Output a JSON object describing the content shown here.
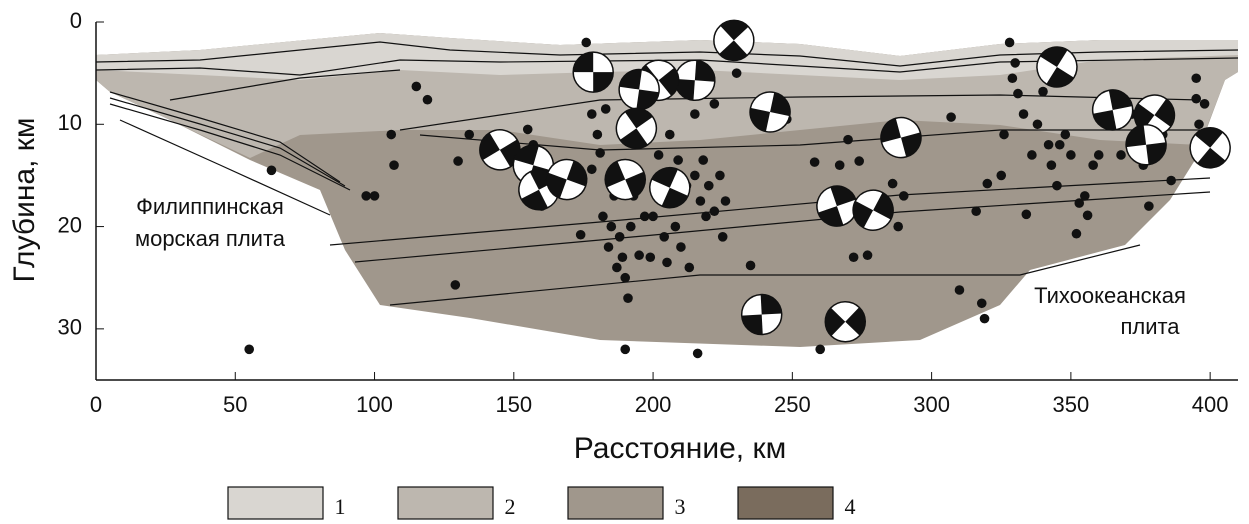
{
  "chart_data": {
    "type": "scatter",
    "xlabel": "Расстояние, км",
    "ylabel": "Глубина, км",
    "xlim": [
      0,
      410
    ],
    "xticks": [
      0,
      50,
      100,
      150,
      200,
      250,
      300,
      350,
      400
    ],
    "ylim": [
      0,
      35
    ],
    "yticks": [
      0,
      10,
      20,
      30
    ],
    "y_inverted": true,
    "annotations": [
      "Филиппинская",
      "морская плита",
      "Тихоокеанская",
      "плита"
    ],
    "legend": [
      {
        "name": "1",
        "color": "#d9d6d1"
      },
      {
        "name": "2",
        "color": "#bdb7af"
      },
      {
        "name": "3",
        "color": "#a0978c"
      },
      {
        "name": "4",
        "color": "#7a6c5d"
      }
    ],
    "earthquakes": {
      "color": "#111111",
      "x": [
        55,
        63,
        97,
        100,
        106,
        107,
        115,
        119,
        129,
        130,
        134,
        147,
        155,
        157,
        160,
        174,
        176,
        178,
        178,
        180,
        181,
        182,
        183,
        184,
        185,
        186,
        187,
        188,
        189,
        190,
        191,
        190,
        192,
        193,
        195,
        197,
        199,
        200,
        202,
        204,
        205,
        206,
        208,
        209,
        210,
        212,
        213,
        215,
        215,
        217,
        216,
        218,
        219,
        220,
        222,
        222,
        224,
        225,
        226,
        227,
        230,
        235,
        248,
        258,
        260,
        263,
        267,
        270,
        272,
        274,
        277,
        286,
        288,
        290,
        307,
        310,
        316,
        318,
        319,
        320,
        325,
        326,
        328,
        329,
        330,
        331,
        333,
        334,
        336,
        338,
        340,
        342,
        343,
        345,
        346,
        348,
        350,
        352,
        353,
        355,
        356,
        358,
        360,
        365,
        368,
        372,
        376,
        378,
        383,
        386,
        395,
        396,
        398,
        395
      ],
      "y": [
        32,
        14.5,
        17,
        17,
        11,
        14,
        6.3,
        7.6,
        25.7,
        13.6,
        11,
        13,
        10.5,
        12,
        18,
        20.8,
        2,
        14.4,
        9,
        11,
        12.8,
        19,
        8.5,
        22,
        20,
        17,
        24,
        21,
        23,
        25,
        27,
        32,
        20,
        17,
        22.8,
        19,
        23,
        19,
        13,
        21,
        23.5,
        11,
        20,
        13.5,
        22,
        16,
        24,
        9,
        15,
        17.5,
        32.4,
        13.5,
        19,
        16,
        8,
        18.5,
        15,
        21,
        17.5,
        2,
        5,
        23.8,
        9.5,
        13.7,
        32,
        18,
        14,
        11.5,
        23,
        13.6,
        22.8,
        15.8,
        20,
        17,
        9.3,
        26.2,
        18.5,
        27.5,
        29,
        15.8,
        15,
        11,
        2,
        5.5,
        4,
        7,
        9,
        18.8,
        13,
        10,
        6.8,
        12,
        14,
        16,
        12,
        11,
        13,
        20.7,
        17.7,
        17,
        18.9,
        14,
        13,
        10,
        13,
        9,
        14,
        18,
        11,
        15.5,
        5.5,
        10,
        8,
        7.5
      ]
    },
    "focal_mechanisms": {
      "x": [
        178.5,
        229,
        215,
        202,
        195,
        194,
        242,
        145,
        157,
        159,
        169,
        190,
        206,
        266,
        279,
        289,
        345,
        365,
        380,
        377,
        400,
        239,
        269
      ],
      "y": [
        4.9,
        1.8,
        5.7,
        5.7,
        6.6,
        10.4,
        8.8,
        12.5,
        14,
        16.4,
        15.4,
        15.4,
        16.2,
        18,
        18.4,
        11.3,
        4.4,
        8.6,
        9.1,
        12,
        12.3,
        28.6,
        29.3
      ]
    }
  }
}
